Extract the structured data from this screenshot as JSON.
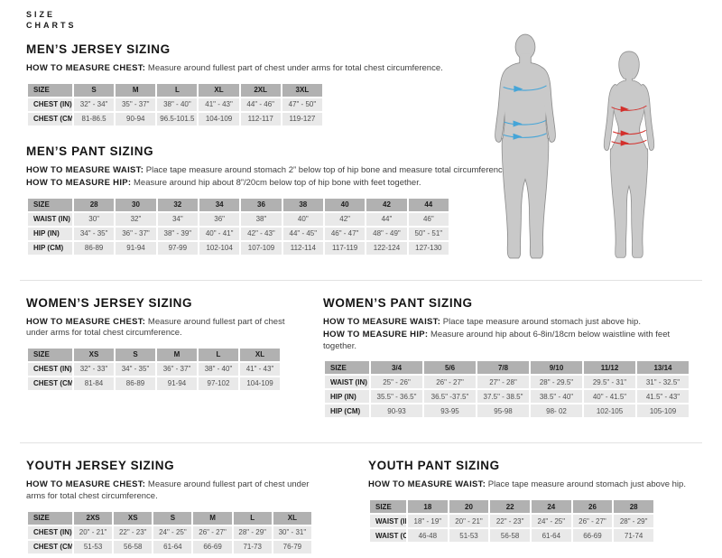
{
  "brand": {
    "line1": "SIZE",
    "line2": "CHARTS"
  },
  "colors": {
    "header_bg": "#b1b1b1",
    "row_bg": "#e9e9e9",
    "divider": "#e2e2e2",
    "body_text": "#3f3f3f",
    "cell_text": "#4f4f4f",
    "body_fill": "#c9c9c9",
    "body_outline": "#8e8e8e",
    "male_arrow": "#45a5d8",
    "female_arrow": "#d3302c"
  },
  "sections": [
    {
      "title": "MEN’S JERSEY SIZING",
      "notes": [
        {
          "label": "HOW TO MEASURE CHEST:",
          "text": "Measure around fullest part of chest under arms for total chest circumference."
        }
      ],
      "table": {
        "header": [
          "SIZE",
          "S",
          "M",
          "L",
          "XL",
          "2XL",
          "3XL"
        ],
        "rows": [
          {
            "label": "CHEST (IN)",
            "values": [
              "32\" - 34\"",
              "35\" - 37\"",
              "38\" - 40\"",
              "41\" - 43\"",
              "44\" - 46\"",
              "47\" - 50\""
            ]
          },
          {
            "label": "CHEST (CM)",
            "values": [
              "81-86.5",
              "90-94",
              "96.5-101.5",
              "104-109",
              "112-117",
              "119-127"
            ]
          }
        ]
      }
    },
    {
      "title": "MEN’S PANT SIZING",
      "notes": [
        {
          "label": "HOW TO MEASURE WAIST:",
          "text": "Place tape measure around stomach 2” below top of hip bone and measure total circumference."
        },
        {
          "label": "HOW TO MEASURE HIP:",
          "text": "Measure around hip about 8”/20cm below top of hip bone with feet together."
        }
      ],
      "table": {
        "header": [
          "SIZE",
          "28",
          "30",
          "32",
          "34",
          "36",
          "38",
          "40",
          "42",
          "44"
        ],
        "rows": [
          {
            "label": "WAIST (IN)",
            "values": [
              "30\"",
              "32\"",
              "34\"",
              "36\"",
              "38\"",
              "40\"",
              "42\"",
              "44\"",
              "46\""
            ]
          },
          {
            "label": "HIP (IN)",
            "values": [
              "34\" - 35\"",
              "36\" - 37\"",
              "38\" - 39\"",
              "40\" - 41\"",
              "42\" - 43\"",
              "44\" - 45\"",
              "46\" - 47\"",
              "48\" - 49\"",
              "50\" - 51\""
            ]
          },
          {
            "label": "HIP (CM)",
            "values": [
              "86-89",
              "91-94",
              "97-99",
              "102-104",
              "107-109",
              "112-114",
              "117-119",
              "122-124",
              "127-130"
            ]
          }
        ]
      }
    },
    {
      "title": "WOMEN’S JERSEY SIZING",
      "notes": [
        {
          "label": "HOW TO MEASURE CHEST:",
          "text": "Measure around fullest part of chest under arms for total chest circumference."
        }
      ],
      "table": {
        "header": [
          "SIZE",
          "XS",
          "S",
          "M",
          "L",
          "XL"
        ],
        "rows": [
          {
            "label": "CHEST (IN)",
            "values": [
              "32\" - 33\"",
              "34\" - 35\"",
              "36\" - 37\"",
              "38\" - 40\"",
              "41\" - 43\""
            ]
          },
          {
            "label": "CHEST (CM)",
            "values": [
              "81-84",
              "86-89",
              "91-94",
              "97-102",
              "104-109"
            ]
          }
        ]
      }
    },
    {
      "title": "WOMEN’S PANT SIZING",
      "notes": [
        {
          "label": "HOW TO MEASURE WAIST:",
          "text": "Place tape measure around stomach just above hip."
        },
        {
          "label": "HOW TO MEASURE HIP:",
          "text": "Measure around hip about 6-8in/18cm below waistline with feet together."
        }
      ],
      "table": {
        "header": [
          "SIZE",
          "3/4",
          "5/6",
          "7/8",
          "9/10",
          "11/12",
          "13/14"
        ],
        "rows": [
          {
            "label": "WAIST (IN)",
            "values": [
              "25\" - 26\"",
              "26\" - 27\"",
              "27\" - 28\"",
              "28\" - 29.5\"",
              "29.5\" - 31\"",
              "31\" - 32.5\""
            ]
          },
          {
            "label": "HIP (IN)",
            "values": [
              "35.5\" - 36.5\"",
              "36.5\" -37.5\"",
              "37.5\" - 38.5\"",
              "38.5\" - 40\"",
              "40\" - 41.5\"",
              "41.5\" - 43\""
            ]
          },
          {
            "label": "HIP (CM)",
            "values": [
              "90-93",
              "93-95",
              "95-98",
              "98- 02",
              "102-105",
              "105-109"
            ]
          }
        ]
      }
    },
    {
      "title": "YOUTH JERSEY SIZING",
      "notes": [
        {
          "label": "HOW TO MEASURE CHEST:",
          "text": "Measure around fullest part of chest under arms for total chest circumference."
        }
      ],
      "table": {
        "header": [
          "SIZE",
          "2XS",
          "XS",
          "S",
          "M",
          "L",
          "XL"
        ],
        "rows": [
          {
            "label": "CHEST (IN)",
            "values": [
              "20\" - 21\"",
              "22\" - 23\"",
              "24\" - 25\"",
              "26\" - 27\"",
              "28\" - 29\"",
              "30\" - 31\""
            ]
          },
          {
            "label": "CHEST (CM)",
            "values": [
              "51-53",
              "56-58",
              "61-64",
              "66-69",
              "71-73",
              "76-79"
            ]
          }
        ]
      }
    },
    {
      "title": "YOUTH PANT SIZING",
      "notes": [
        {
          "label": "HOW TO MEASURE WAIST:",
          "text": "Place tape measure around stomach just above hip."
        }
      ],
      "table": {
        "header": [
          "SIZE",
          "18",
          "20",
          "22",
          "24",
          "26",
          "28"
        ],
        "rows": [
          {
            "label": "WAIST (IN)",
            "values": [
              "18\" - 19\"",
              "20\" - 21\"",
              "22\" - 23\"",
              "24\" - 25\"",
              "26\" - 27\"",
              "28\" - 29\""
            ]
          },
          {
            "label": "WAIST (CM)",
            "values": [
              "46-48",
              "51-53",
              "56-58",
              "61-64",
              "66-69",
              "71-74"
            ]
          }
        ]
      }
    }
  ]
}
